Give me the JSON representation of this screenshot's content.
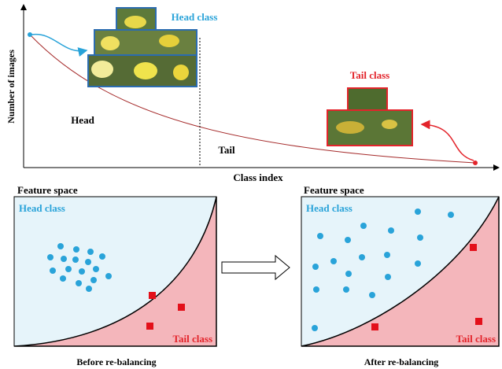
{
  "top": {
    "head_label": "Head class",
    "tail_label": "Tail class",
    "y_axis": "Number of images",
    "head_region": "Head",
    "tail_region": "Tail",
    "x_axis": "Class index"
  },
  "panels": [
    {
      "title": "Feature space",
      "head_label": "Head class",
      "tail_label": "Tail class",
      "caption": "Before re-balancing"
    },
    {
      "title": "Feature space",
      "head_label": "Head class",
      "tail_label": "Tail class",
      "caption": "After re-balancing"
    }
  ]
}
